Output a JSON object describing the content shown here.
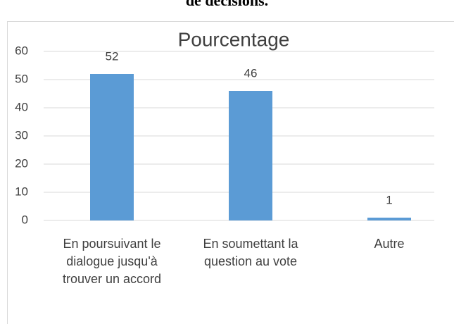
{
  "heading_fragment": "de décisions.",
  "chart_data": {
    "type": "bar",
    "title": "Pourcentage",
    "categories": [
      "En poursuivant le dialogue jusqu'à trouver un accord",
      "En soumettant la question au vote",
      "Autre"
    ],
    "values": [
      52,
      46,
      1
    ],
    "color": "#5b9bd5",
    "ylim": [
      0,
      60
    ],
    "yticks": [
      0,
      10,
      20,
      30,
      40,
      50,
      60
    ],
    "grid": true
  }
}
